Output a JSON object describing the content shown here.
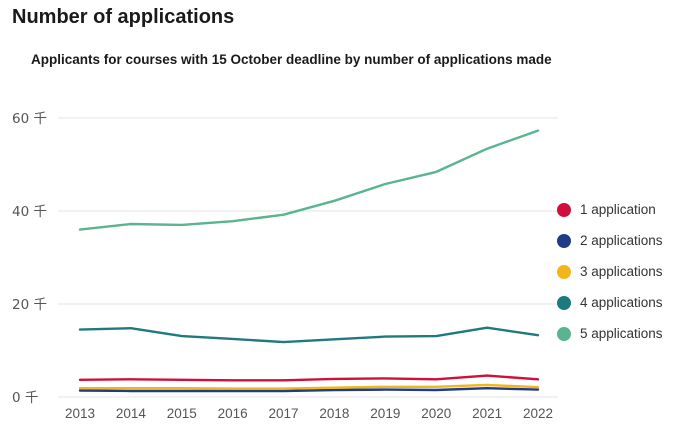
{
  "header": {
    "title": "Number of applications"
  },
  "chart_data": {
    "type": "line",
    "title": "Number of applications",
    "subtitle": "Applicants for courses with 15 October deadline by number of applications made",
    "xlabel": "",
    "ylabel": "",
    "x": [
      "2013",
      "2014",
      "2015",
      "2016",
      "2017",
      "2018",
      "2019",
      "2020",
      "2021",
      "2022"
    ],
    "ylim": [
      0,
      60
    ],
    "yticks": [
      0,
      20,
      40,
      60
    ],
    "ytick_labels": [
      "0 千",
      "20 千",
      "40 千",
      "60 千"
    ],
    "grid": true,
    "legend_position": "right",
    "series": [
      {
        "name": "1 application",
        "color": "#d0103a",
        "values": [
          3.7,
          3.8,
          3.7,
          3.6,
          3.6,
          3.9,
          4.0,
          3.8,
          4.6,
          3.8
        ]
      },
      {
        "name": "2 applications",
        "color": "#1f3c88",
        "values": [
          1.4,
          1.3,
          1.3,
          1.3,
          1.3,
          1.5,
          1.6,
          1.5,
          1.9,
          1.6
        ]
      },
      {
        "name": "3 applications",
        "color": "#f2b619",
        "values": [
          1.9,
          1.9,
          1.9,
          1.8,
          1.8,
          2.0,
          2.2,
          2.2,
          2.6,
          2.1
        ]
      },
      {
        "name": "4 applications",
        "color": "#1f7a80",
        "values": [
          14.5,
          14.8,
          13.1,
          12.5,
          11.8,
          12.4,
          13.0,
          13.1,
          14.9,
          13.3
        ]
      },
      {
        "name": "5 applications",
        "color": "#5ab48f",
        "values": [
          36.0,
          37.2,
          37.0,
          37.8,
          39.2,
          42.2,
          45.8,
          48.4,
          53.4,
          57.3
        ]
      }
    ]
  }
}
